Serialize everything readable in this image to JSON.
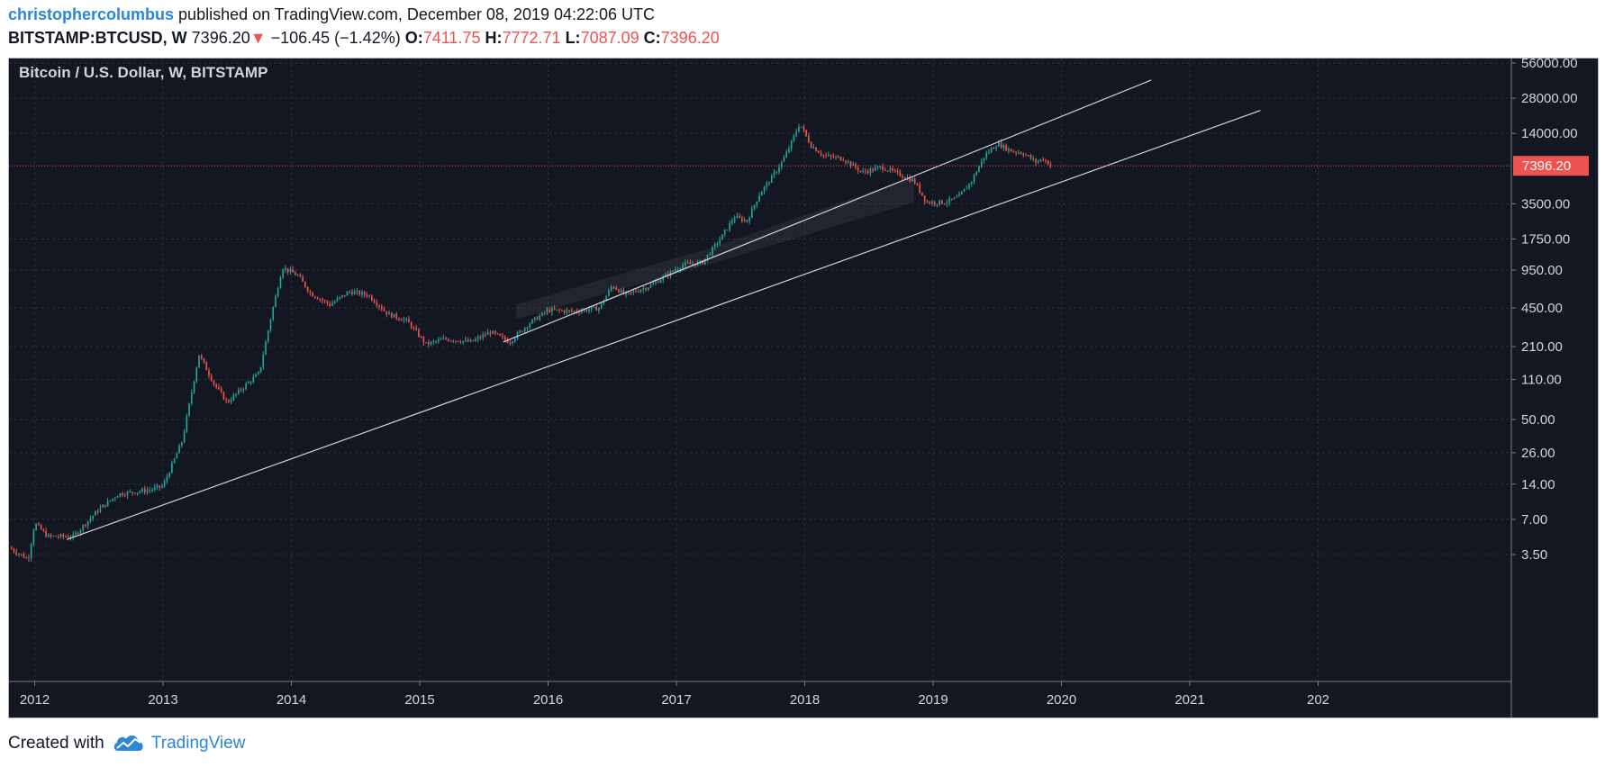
{
  "header": {
    "author": "christophercolumbus",
    "published_text": "published on TradingView.com, December 08, 2019 04:22:06 UTC",
    "symbol": "BITSTAMP:BTCUSD, W",
    "last_price": "7396.20",
    "down_arrow": "▼",
    "change": "−106.45 (−1.42%)",
    "ohlc": {
      "o_label": "O:",
      "o_value": "7411.75",
      "h_label": "H:",
      "h_value": "7772.71",
      "l_label": "L:",
      "l_value": "7087.09",
      "c_label": "C:",
      "c_value": "7396.20"
    }
  },
  "footer": {
    "prefix": "Created with",
    "brand": "TradingView",
    "logo_icon": "tradingview-cloud-icon"
  },
  "colors": {
    "background": "#131722",
    "up": "#26a69a",
    "down": "#ef5350",
    "trendline": "#d1d4dc",
    "price_line": "#ef5350",
    "axis_text": "#d1d4dc"
  },
  "chart_data": {
    "type": "candlestick",
    "title": "Bitcoin / U.S. Dollar, W, BITSTAMP",
    "y_scale": "log",
    "ylim": [
      3.0,
      60000
    ],
    "xlim": [
      2011.8,
      2022.0
    ],
    "y_ticks": [
      "56000.00",
      "28000.00",
      "14000.00",
      "3500.00",
      "1750.00",
      "950.00",
      "450.00",
      "210.00",
      "110.00",
      "50.00",
      "26.00",
      "14.00",
      "7.00",
      "3.50"
    ],
    "x_ticks": [
      "2012",
      "2013",
      "2014",
      "2015",
      "2016",
      "2017",
      "2018",
      "2019",
      "2020",
      "2021",
      "202"
    ],
    "current_price": {
      "value": 7396.2,
      "label": "7396.20"
    },
    "price_anchors": [
      [
        2011.8,
        4.0
      ],
      [
        2011.95,
        3.2
      ],
      [
        2012.0,
        6.5
      ],
      [
        2012.1,
        5.0
      ],
      [
        2012.3,
        5.0
      ],
      [
        2012.5,
        8.5
      ],
      [
        2012.65,
        11.5
      ],
      [
        2012.9,
        12.5
      ],
      [
        2013.0,
        13.5
      ],
      [
        2013.15,
        33
      ],
      [
        2013.28,
        180
      ],
      [
        2013.4,
        100
      ],
      [
        2013.5,
        70
      ],
      [
        2013.65,
        100
      ],
      [
        2013.75,
        125
      ],
      [
        2013.85,
        420
      ],
      [
        2013.93,
        1000
      ],
      [
        2014.05,
        850
      ],
      [
        2014.15,
        600
      ],
      [
        2014.3,
        480
      ],
      [
        2014.45,
        620
      ],
      [
        2014.6,
        580
      ],
      [
        2014.75,
        400
      ],
      [
        2014.9,
        350
      ],
      [
        2015.05,
        220
      ],
      [
        2015.2,
        245
      ],
      [
        2015.4,
        230
      ],
      [
        2015.55,
        280
      ],
      [
        2015.7,
        230
      ],
      [
        2015.85,
        330
      ],
      [
        2016.0,
        430
      ],
      [
        2016.2,
        420
      ],
      [
        2016.4,
        450
      ],
      [
        2016.5,
        700
      ],
      [
        2016.6,
        580
      ],
      [
        2016.8,
        700
      ],
      [
        2016.95,
        900
      ],
      [
        2017.05,
        1050
      ],
      [
        2017.2,
        1100
      ],
      [
        2017.35,
        1800
      ],
      [
        2017.45,
        2700
      ],
      [
        2017.55,
        2500
      ],
      [
        2017.65,
        4300
      ],
      [
        2017.75,
        6000
      ],
      [
        2017.85,
        9000
      ],
      [
        2017.96,
        17000
      ],
      [
        2018.05,
        11000
      ],
      [
        2018.15,
        9000
      ],
      [
        2018.3,
        8500
      ],
      [
        2018.45,
        6500
      ],
      [
        2018.6,
        7200
      ],
      [
        2018.7,
        6500
      ],
      [
        2018.85,
        5500
      ],
      [
        2018.95,
        3600
      ],
      [
        2019.1,
        3600
      ],
      [
        2019.2,
        4000
      ],
      [
        2019.3,
        5500
      ],
      [
        2019.4,
        9000
      ],
      [
        2019.5,
        11500
      ],
      [
        2019.6,
        10000
      ],
      [
        2019.7,
        9500
      ],
      [
        2019.8,
        8000
      ],
      [
        2019.86,
        8500
      ],
      [
        2019.92,
        7396
      ]
    ],
    "trendlines": [
      {
        "from": [
          2012.25,
          4.7
        ],
        "to": [
          2021.55,
          22000
        ]
      },
      {
        "from": [
          2015.65,
          230
        ],
        "to": [
          2020.7,
          40000
        ]
      }
    ],
    "shaded_band": {
      "from_x": 2015.75,
      "to_x": 2018.85
    }
  }
}
